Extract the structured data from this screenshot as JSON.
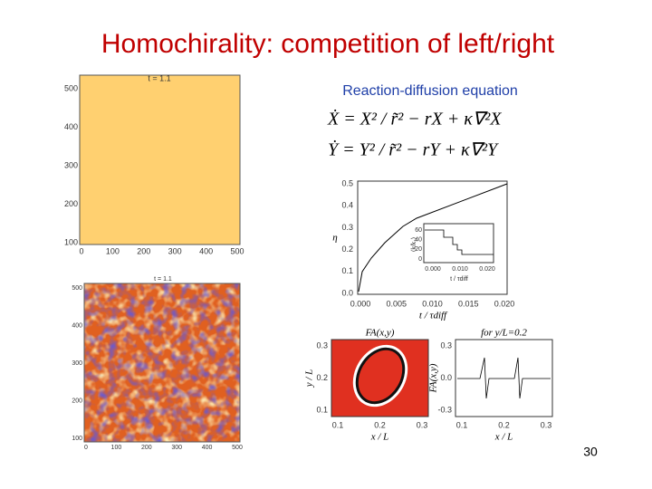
{
  "title": "Homochirality: competition of left/right",
  "subtitle": "Reaction-diffusion equation",
  "equations": [
    "Ẋ = X² / r̃² − rX + κ∇²X",
    "Ẏ = Y² / r̃² − rY + κ∇²Y"
  ],
  "slide_number": "30",
  "top_simulation": {
    "label": "t = 1.1",
    "xticks": [
      "0",
      "100",
      "200",
      "300",
      "400",
      "500"
    ],
    "yticks": [
      "500",
      "400",
      "300",
      "200",
      "100"
    ]
  },
  "bottom_simulation": {
    "label": "t = 1.1",
    "xticks": [
      "0",
      "100",
      "200",
      "300",
      "400",
      "500"
    ],
    "yticks": [
      "500",
      "400",
      "300",
      "200",
      "100"
    ]
  },
  "eta_plot": {
    "ylabel": "η",
    "xlabel": "t / τdiff",
    "yticks": [
      "0.0",
      "0.1",
      "0.2",
      "0.3",
      "0.4",
      "0.5"
    ],
    "xticks": [
      "0.000",
      "0.005",
      "0.010",
      "0.015",
      "0.020"
    ],
    "inset": {
      "ylabel": "⟨k/k₁⟩",
      "xlabel": "t / τdiff",
      "yticks": [
        "60",
        "40",
        "20",
        "0"
      ],
      "xticks": [
        "0.000",
        "0.010",
        "0.020"
      ]
    }
  },
  "field_plot": {
    "title": "FA(x,y)",
    "ylabel": "y / L",
    "xlabel": "x / L",
    "xticks": [
      "0.1",
      "0.2",
      "0.3"
    ],
    "yticks": [
      "0.3",
      "0.2",
      "0.1"
    ]
  },
  "profile_plot": {
    "title": "for y/L=0.2",
    "ylabel": "FA(x,y)",
    "xlabel": "x / L",
    "xticks": [
      "0.1",
      "0.2",
      "0.3"
    ],
    "yticks": [
      "0.3",
      "0.0",
      "-0.3"
    ]
  }
}
